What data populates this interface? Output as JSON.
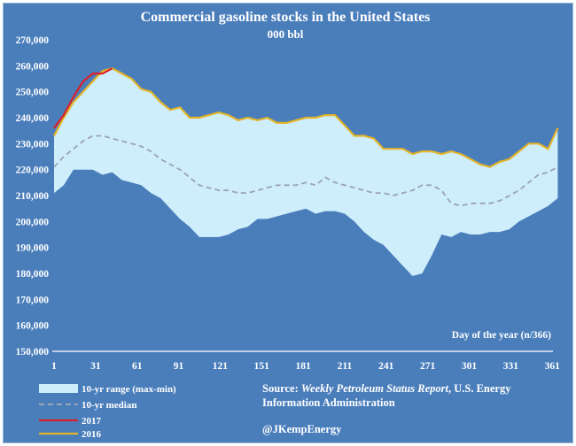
{
  "chart_data": {
    "type": "area",
    "title": "Commercial gasoline stocks in the United States",
    "subtitle": "000 bbl",
    "xlabel": "Day of the year (n/366)",
    "ylabel": "",
    "xlim": [
      1,
      366
    ],
    "ylim": [
      150000,
      270000
    ],
    "x_ticks": [
      1,
      31,
      61,
      91,
      121,
      151,
      181,
      211,
      241,
      271,
      301,
      331,
      361
    ],
    "y_ticks": [
      150000,
      160000,
      170000,
      180000,
      190000,
      200000,
      210000,
      220000,
      230000,
      240000,
      250000,
      260000,
      270000
    ],
    "y_tick_labels": [
      "150,000",
      "160,000",
      "170,000",
      "180,000",
      "190,000",
      "200,000",
      "210,000",
      "220,000",
      "230,000",
      "240,000",
      "250,000",
      "260,000",
      "270,000"
    ],
    "x_tick_labels": [
      "1",
      "31",
      "61",
      "91",
      "121",
      "151",
      "181",
      "211",
      "241",
      "271",
      "301",
      "331",
      "361"
    ],
    "grid": false,
    "colors": {
      "background": "#4a7ebb",
      "range_fill": "#cfeefb",
      "median": "#9aa4b2",
      "y2017": "#d9202a",
      "y2016": "#e3b42a"
    },
    "series": [
      {
        "name": "10-yr range (max-min)",
        "kind": "band",
        "x": [
          1,
          8,
          15,
          22,
          29,
          36,
          43,
          50,
          57,
          64,
          71,
          78,
          85,
          92,
          99,
          106,
          113,
          120,
          127,
          134,
          141,
          148,
          155,
          162,
          169,
          176,
          183,
          190,
          197,
          204,
          211,
          218,
          225,
          232,
          239,
          246,
          253,
          260,
          267,
          274,
          281,
          288,
          295,
          302,
          309,
          316,
          323,
          330,
          337,
          344,
          351,
          358,
          365
        ],
        "max": [
          233000,
          240000,
          246000,
          250000,
          254000,
          258000,
          259000,
          257000,
          255000,
          251000,
          250000,
          246000,
          243000,
          244000,
          240000,
          240000,
          241000,
          242000,
          241000,
          239000,
          240000,
          239000,
          240000,
          238000,
          238000,
          239000,
          240000,
          240000,
          241000,
          241000,
          237000,
          233000,
          233000,
          232000,
          228000,
          228000,
          228000,
          226000,
          227000,
          227000,
          226000,
          227000,
          226000,
          224000,
          222000,
          221000,
          223000,
          224000,
          227000,
          230000,
          230000,
          228000,
          236000
        ],
        "min": [
          211000,
          214000,
          220000,
          220000,
          220000,
          218000,
          219000,
          216000,
          215000,
          214000,
          211000,
          209000,
          205000,
          201000,
          198000,
          194000,
          194000,
          194000,
          195000,
          197000,
          198000,
          201000,
          201000,
          202000,
          203000,
          204000,
          205000,
          203000,
          204000,
          204000,
          203000,
          200000,
          196000,
          193000,
          191000,
          187000,
          183000,
          179000,
          180000,
          187000,
          195000,
          194000,
          196000,
          195000,
          195000,
          196000,
          196000,
          197000,
          200000,
          202000,
          204000,
          206000,
          209000
        ]
      },
      {
        "name": "10-yr median",
        "kind": "dashed-line",
        "x": [
          1,
          8,
          15,
          22,
          29,
          36,
          43,
          50,
          57,
          64,
          71,
          78,
          85,
          92,
          99,
          106,
          113,
          120,
          127,
          134,
          141,
          148,
          155,
          162,
          169,
          176,
          183,
          190,
          197,
          204,
          211,
          218,
          225,
          232,
          239,
          246,
          253,
          260,
          267,
          274,
          281,
          288,
          295,
          302,
          309,
          316,
          323,
          330,
          337,
          344,
          351,
          358,
          365
        ],
        "values": [
          221000,
          225000,
          228000,
          231000,
          233000,
          233000,
          232000,
          231000,
          230000,
          229000,
          227000,
          224000,
          222000,
          220000,
          217000,
          214000,
          213000,
          212000,
          212000,
          211000,
          211000,
          212000,
          213000,
          214000,
          214000,
          214000,
          215000,
          214000,
          217000,
          215000,
          214000,
          213000,
          212000,
          211000,
          211000,
          210000,
          211000,
          212000,
          214000,
          214000,
          212000,
          207000,
          206000,
          207000,
          207000,
          207000,
          208000,
          210000,
          212000,
          215000,
          218000,
          219000,
          221000
        ]
      },
      {
        "name": "2017",
        "kind": "line",
        "x": [
          1,
          8,
          15,
          22,
          29,
          36,
          43
        ],
        "values": [
          236000,
          241000,
          248000,
          254000,
          257000,
          257000,
          259000
        ]
      },
      {
        "name": "2016",
        "kind": "line",
        "x": [
          1,
          8,
          15,
          22,
          29,
          36,
          43,
          50,
          57,
          64,
          71,
          78,
          85,
          92,
          99,
          106,
          113,
          120,
          127,
          134,
          141,
          148,
          155,
          162,
          169,
          176,
          183,
          190,
          197,
          204,
          211,
          218,
          225,
          232,
          239,
          246,
          253,
          260,
          267,
          274,
          281,
          288,
          295,
          302,
          309,
          316,
          323,
          330,
          337,
          344,
          351,
          358,
          365
        ],
        "values": [
          233000,
          240000,
          246000,
          250000,
          254000,
          258000,
          259000,
          257000,
          255000,
          251000,
          250000,
          246000,
          243000,
          244000,
          240000,
          240000,
          241000,
          242000,
          241000,
          239000,
          240000,
          239000,
          240000,
          238000,
          238000,
          239000,
          240000,
          240000,
          241000,
          241000,
          237000,
          233000,
          233000,
          232000,
          228000,
          228000,
          228000,
          226000,
          227000,
          227000,
          226000,
          227000,
          226000,
          224000,
          222000,
          221000,
          223000,
          224000,
          227000,
          230000,
          230000,
          228000,
          236000
        ]
      }
    ],
    "legend": {
      "position": "bottom-left",
      "entries": [
        "10-yr range (max-min)",
        "10-yr median",
        "2017",
        "2016"
      ]
    },
    "source_prefix": "Source: ",
    "source_italic": "Weekly Petroleum Status Report",
    "source_rest": ", U.S. Energy",
    "source_line2": "Information Administration",
    "credit": "@JKempEnergy"
  }
}
